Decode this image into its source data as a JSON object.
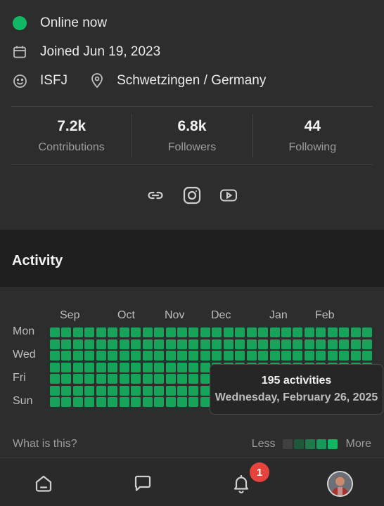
{
  "profile": {
    "status": "Online now",
    "joined": "Joined Jun 19, 2023",
    "personality": "ISFJ",
    "location": "Schwetzingen / Germany"
  },
  "stats": [
    {
      "value": "7.2k",
      "label": "Contributions"
    },
    {
      "value": "6.8k",
      "label": "Followers"
    },
    {
      "value": "44",
      "label": "Following"
    }
  ],
  "social_icons": [
    "link-icon",
    "instagram-icon",
    "youtube-icon"
  ],
  "activity": {
    "title": "Activity",
    "months": [
      "Sep",
      "Oct",
      "Nov",
      "Dec",
      "Jan",
      "Feb"
    ],
    "day_labels": [
      "Mon",
      "Wed",
      "Fri",
      "Sun"
    ],
    "tooltip": {
      "count": "195 activities",
      "date": "Wednesday, February 26, 2025"
    },
    "help_link": "What is this?",
    "legend": {
      "less": "Less",
      "more": "More",
      "levels": [
        "#404040",
        "#1d5a39",
        "#1f7a4b",
        "#16995a",
        "#12b763"
      ]
    },
    "grid_weeks": 28,
    "grid_days": 7
  },
  "nav": {
    "items": [
      "home-icon",
      "chat-icon",
      "bell-icon",
      "profile-avatar"
    ],
    "notification_count": "1"
  },
  "colors": {
    "accent_green": "#12b763",
    "cell_green": "#15a45a",
    "badge_red": "#e5433b"
  }
}
